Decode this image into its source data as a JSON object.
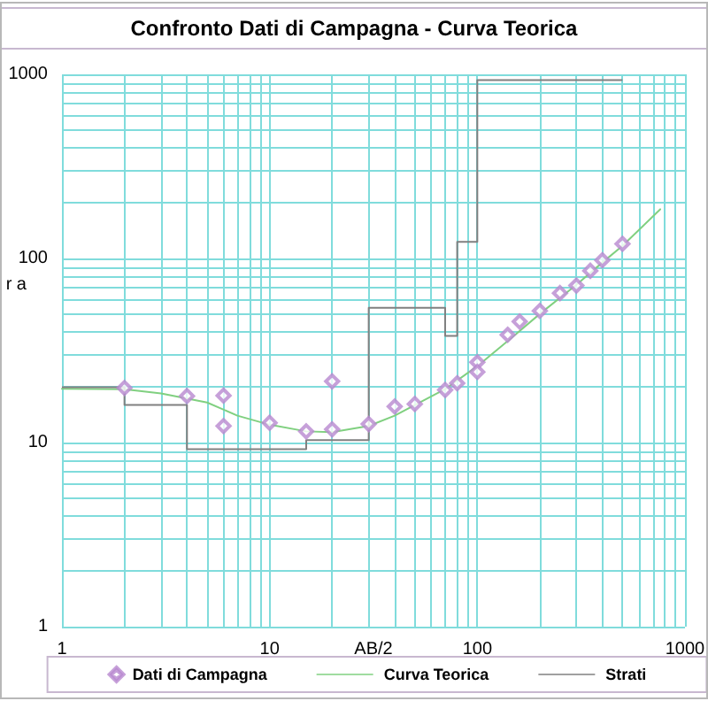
{
  "chart_data": {
    "type": "line",
    "title": "Confronto Dati di Campagna - Curva Teorica",
    "xlabel": "AB/2",
    "ylabel": "r a",
    "log": "xy",
    "grid": true,
    "legend": "bottom",
    "xlim": [
      1,
      1000
    ],
    "ylim": [
      1,
      1000
    ],
    "xticks": [
      1,
      {
        "value": 2,
        "label": null
      },
      {
        "value": 3,
        "label": null
      },
      {
        "value": 4,
        "label": null
      },
      {
        "value": 5,
        "label": null
      },
      {
        "value": 6,
        "label": null
      },
      {
        "value": 7,
        "label": null
      },
      {
        "value": 8,
        "label": null
      },
      {
        "value": 9,
        "label": null
      },
      10,
      {
        "value": 20,
        "label": null
      },
      {
        "value": 30,
        "label": null
      },
      {
        "value": 40,
        "label": null
      },
      {
        "value": 50,
        "label": null
      },
      {
        "value": 60,
        "label": null
      },
      {
        "value": 70,
        "label": null
      },
      {
        "value": 80,
        "label": null
      },
      {
        "value": 90,
        "label": null
      },
      100,
      {
        "value": 200,
        "label": null
      },
      {
        "value": 300,
        "label": null
      },
      {
        "value": 400,
        "label": null
      },
      {
        "value": 500,
        "label": null
      },
      {
        "value": 600,
        "label": null
      },
      {
        "value": 700,
        "label": null
      },
      {
        "value": 800,
        "label": null
      },
      {
        "value": 900,
        "label": null
      },
      1000
    ],
    "yticks": [
      1,
      {
        "value": 2,
        "label": null
      },
      {
        "value": 3,
        "label": null
      },
      {
        "value": 4,
        "label": null
      },
      {
        "value": 5,
        "label": null
      },
      {
        "value": 6,
        "label": null
      },
      {
        "value": 7,
        "label": null
      },
      {
        "value": 8,
        "label": null
      },
      {
        "value": 9,
        "label": null
      },
      10,
      {
        "value": 20,
        "label": null
      },
      {
        "value": 30,
        "label": null
      },
      {
        "value": 40,
        "label": null
      },
      {
        "value": 50,
        "label": null
      },
      {
        "value": 60,
        "label": null
      },
      {
        "value": 70,
        "label": null
      },
      {
        "value": 80,
        "label": null
      },
      {
        "value": 90,
        "label": null
      },
      100,
      {
        "value": 200,
        "label": null
      },
      {
        "value": 300,
        "label": null
      },
      {
        "value": 400,
        "label": null
      },
      {
        "value": 500,
        "label": null
      },
      {
        "value": 600,
        "label": null
      },
      {
        "value": 700,
        "label": null
      },
      {
        "value": 800,
        "label": null
      },
      {
        "value": 900,
        "label": null
      },
      1000
    ],
    "series": [
      {
        "name": "Dati di Campagna",
        "type": "scatter",
        "marker": "diamond",
        "color": "#b888d0",
        "x": [
          2,
          4,
          6,
          6,
          10,
          15,
          20,
          20,
          30,
          40,
          50,
          70,
          80,
          100,
          100,
          140,
          160,
          200,
          250,
          300,
          350,
          400,
          500
        ],
        "values": [
          19.8,
          17.9,
          18,
          12.3,
          12.8,
          11.5,
          11.8,
          21.5,
          12.6,
          15.7,
          16.2,
          19.3,
          21,
          27.3,
          24.2,
          38.5,
          45.4,
          51.9,
          64.8,
          71.3,
          85.7,
          97.8,
          120
        ]
      },
      {
        "name": "Curva Teorica",
        "type": "line",
        "marker": "none",
        "color": "#80d080",
        "x": [
          1,
          2,
          3,
          5,
          7,
          10,
          15,
          20,
          30,
          40,
          50,
          70,
          100,
          150,
          200,
          300,
          400,
          500,
          760
        ],
        "values": [
          19.6,
          19.5,
          18.5,
          16.5,
          14,
          12.5,
          11.5,
          11.4,
          12.3,
          14,
          16,
          19.5,
          26,
          38,
          50,
          72,
          95,
          117,
          185
        ]
      },
      {
        "name": "Strati",
        "type": "step",
        "marker": "none",
        "color": "#808080",
        "x": [
          1,
          2,
          4,
          15,
          30,
          70,
          80,
          100,
          500
        ],
        "values": [
          20,
          16,
          9.2,
          10.3,
          54,
          38,
          123,
          930,
          930
        ]
      }
    ]
  }
}
